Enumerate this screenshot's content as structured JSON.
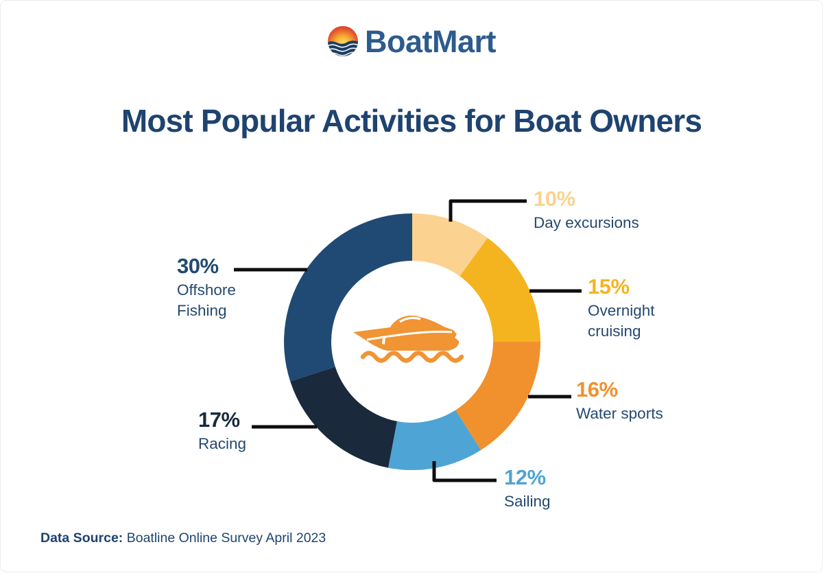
{
  "logo": {
    "text": "BoatMart",
    "icon": "sun-over-waves-icon"
  },
  "title": "Most Popular Activities for Boat Owners",
  "footer": {
    "label": "Data Source:",
    "text": " Boatline Online Survey April 2023"
  },
  "colors": {
    "brand_text": "#2D5B8E",
    "title_text": "#1E4370",
    "callout_name_text": "#24496F",
    "leader_line": "#0E0E0E",
    "boat_icon": "#F09434"
  },
  "chart_data": {
    "type": "pie",
    "subtype": "donut",
    "title": "Most Popular Activities for Boat Owners",
    "center_icon": "motor-yacht-icon",
    "start_angle_deg_from_top": 0,
    "direction": "clockwise",
    "legend_position": "callouts-around-chart",
    "segments": [
      {
        "label": "Day excursions",
        "value_pct": 10,
        "display": "10%",
        "color": "#FBD28F"
      },
      {
        "label": "Overnight cruising",
        "value_pct": 15,
        "display": "15%",
        "color": "#F4B41F"
      },
      {
        "label": "Water sports",
        "value_pct": 16,
        "display": "16%",
        "color": "#F0912D"
      },
      {
        "label": "Sailing",
        "value_pct": 12,
        "display": "12%",
        "color": "#4EA4D4"
      },
      {
        "label": "Racing",
        "value_pct": 17,
        "display": "17%",
        "color": "#1A2A3C"
      },
      {
        "label": "Offshore Fishing",
        "value_pct": 30,
        "display": "30%",
        "color": "#204A73"
      }
    ]
  }
}
